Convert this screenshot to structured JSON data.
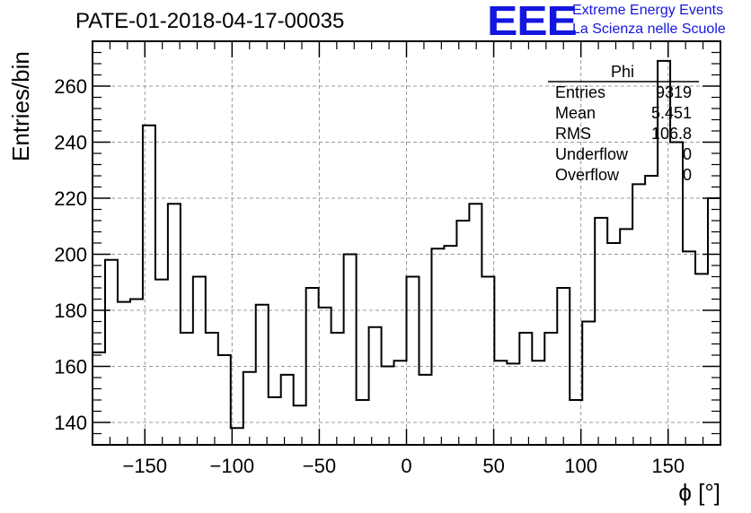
{
  "title": "PATE-01-2018-04-17-00035",
  "logo": {
    "mark": "EEE",
    "line1": "Extreme Energy Events",
    "line2": "La Scienza nelle Scuole",
    "color": "#1515e0"
  },
  "stats_box": {
    "title": "Phi",
    "rows": [
      {
        "label": "Entries",
        "value": "9319"
      },
      {
        "label": "Mean",
        "value": "5.451"
      },
      {
        "label": "RMS",
        "value": "106.8"
      },
      {
        "label": "Underflow",
        "value": "0"
      },
      {
        "label": "Overflow",
        "value": "0"
      }
    ]
  },
  "chart_data": {
    "type": "bar",
    "style": "step-histogram",
    "title": "PATE-01-2018-04-17-00035",
    "xlabel": "ϕ [°]",
    "ylabel": "Entries/bin",
    "xlim": [
      -180,
      180
    ],
    "ylim": [
      132,
      276
    ],
    "bin_width": 7.2,
    "x_ticks": [
      -150,
      -100,
      -50,
      0,
      50,
      100,
      150
    ],
    "x_tick_labels": [
      "−150",
      "−100",
      "−50",
      "0",
      "50",
      "100",
      "150"
    ],
    "y_ticks": [
      140,
      160,
      180,
      200,
      220,
      240,
      260
    ],
    "y_tick_labels": [
      "140",
      "160",
      "180",
      "200",
      "220",
      "240",
      "260"
    ],
    "grid": true,
    "values": [
      165,
      198,
      183,
      184,
      246,
      191,
      218,
      172,
      192,
      172,
      164,
      138,
      158,
      182,
      149,
      157,
      146,
      188,
      181,
      172,
      200,
      148,
      174,
      160,
      162,
      192,
      157,
      202,
      203,
      212,
      218,
      192,
      162,
      161,
      172,
      162,
      172,
      188,
      148,
      176,
      213,
      204,
      209,
      225,
      228,
      269,
      240,
      201,
      193,
      220
    ]
  }
}
